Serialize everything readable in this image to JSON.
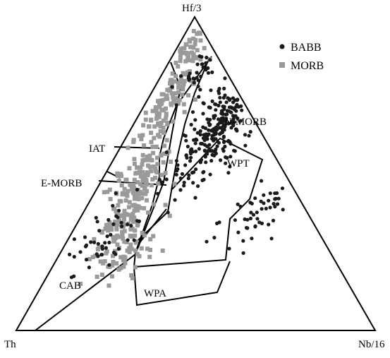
{
  "chart_data": {
    "type": "scatter",
    "diagram": "ternary",
    "apices": {
      "top": "Hf/3",
      "left": "Th",
      "right": "Nb/16"
    },
    "legend": {
      "placement": "top-right",
      "entries": [
        {
          "label": "BABB",
          "marker": "circle",
          "color": "#1a1a1a"
        },
        {
          "label": "MORB",
          "marker": "square",
          "color": "#9a9a9a"
        }
      ]
    },
    "field_labels": [
      "N-MORB",
      "IAT",
      "WPT",
      "E-MORB",
      "CAB",
      "WPA"
    ],
    "series": [
      {
        "label": "MORB",
        "clusters": [
          {
            "center": [
              0.92,
              0.04
            ],
            "sd": [
              0.05,
              0.02
            ],
            "n": 40
          },
          {
            "center": [
              0.72,
              0.06
            ],
            "sd": [
              0.07,
              0.025
            ],
            "n": 110
          },
          {
            "center": [
              0.5,
              0.1
            ],
            "sd": [
              0.06,
              0.03
            ],
            "n": 110
          },
          {
            "center": [
              0.34,
              0.12
            ],
            "sd": [
              0.05,
              0.025
            ],
            "n": 100
          },
          {
            "center": [
              0.24,
              0.18
            ],
            "sd": [
              0.05,
              0.04
            ],
            "n": 60
          }
        ]
      },
      {
        "label": "BABB",
        "clusters": [
          {
            "center": [
              0.84,
              0.1
            ],
            "sd": [
              0.05,
              0.03
            ],
            "n": 30
          },
          {
            "center": [
              0.68,
              0.24
            ],
            "sd": [
              0.08,
              0.04
            ],
            "n": 150
          },
          {
            "center": [
              0.56,
              0.24
            ],
            "sd": [
              0.07,
              0.04
            ],
            "n": 90
          },
          {
            "center": [
              0.38,
              0.48
            ],
            "sd": [
              0.06,
              0.05
            ],
            "n": 50
          },
          {
            "center": [
              0.3,
              0.1
            ],
            "sd": [
              0.07,
              0.05
            ],
            "n": 50
          }
        ]
      }
    ]
  }
}
